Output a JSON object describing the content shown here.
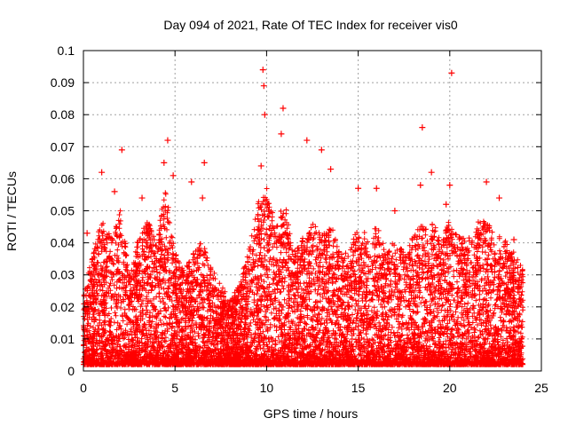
{
  "chart_data": {
    "type": "scatter",
    "title": "Day 094 of 2021, Rate Of TEC Index for receiver vis0",
    "xlabel": "GPS time / hours",
    "ylabel": "ROTI / TECUs",
    "xlim": [
      0,
      25
    ],
    "ylim": [
      0,
      0.1
    ],
    "xticks": [
      0,
      5,
      10,
      15,
      20,
      25
    ],
    "xtick_labels": [
      "0",
      "5",
      "10",
      "15",
      "20",
      "25"
    ],
    "yticks": [
      0,
      0.01,
      0.02,
      0.03,
      0.04,
      0.05,
      0.06,
      0.07,
      0.08,
      0.09,
      0.1
    ],
    "ytick_labels": [
      "0",
      "0.01",
      "0.02",
      "0.03",
      "0.04",
      "0.05",
      "0.06",
      "0.07",
      "0.08",
      "0.09",
      "0.1"
    ],
    "grid": true,
    "marker": "+",
    "marker_color": "#ff0000",
    "x_range_of_data": [
      0,
      24
    ],
    "series": [
      {
        "name": "ROTI",
        "notable_points": [
          {
            "x": 9.8,
            "y": 0.094
          },
          {
            "x": 9.85,
            "y": 0.089
          },
          {
            "x": 20.1,
            "y": 0.093
          },
          {
            "x": 10.9,
            "y": 0.082
          },
          {
            "x": 9.9,
            "y": 0.08
          },
          {
            "x": 18.5,
            "y": 0.076
          },
          {
            "x": 10.8,
            "y": 0.074
          },
          {
            "x": 12.2,
            "y": 0.072
          },
          {
            "x": 4.6,
            "y": 0.072
          },
          {
            "x": 13.0,
            "y": 0.069
          },
          {
            "x": 2.1,
            "y": 0.069
          },
          {
            "x": 6.6,
            "y": 0.065
          },
          {
            "x": 4.4,
            "y": 0.065
          },
          {
            "x": 9.7,
            "y": 0.064
          },
          {
            "x": 13.5,
            "y": 0.063
          },
          {
            "x": 1.0,
            "y": 0.062
          },
          {
            "x": 19.0,
            "y": 0.062
          },
          {
            "x": 4.9,
            "y": 0.061
          },
          {
            "x": 5.9,
            "y": 0.059
          },
          {
            "x": 22.0,
            "y": 0.059
          },
          {
            "x": 18.4,
            "y": 0.058
          },
          {
            "x": 20.0,
            "y": 0.058
          },
          {
            "x": 15.0,
            "y": 0.057
          },
          {
            "x": 16.0,
            "y": 0.057
          },
          {
            "x": 1.7,
            "y": 0.056
          },
          {
            "x": 3.2,
            "y": 0.054
          },
          {
            "x": 6.5,
            "y": 0.054
          },
          {
            "x": 22.7,
            "y": 0.054
          },
          {
            "x": 19.8,
            "y": 0.052
          },
          {
            "x": 17.0,
            "y": 0.05
          },
          {
            "x": 0.2,
            "y": 0.043
          },
          {
            "x": 23.5,
            "y": 0.041
          },
          {
            "x": 8.5,
            "y": 0.025
          },
          {
            "x": 7.8,
            "y": 0.015
          }
        ]
      }
    ]
  }
}
